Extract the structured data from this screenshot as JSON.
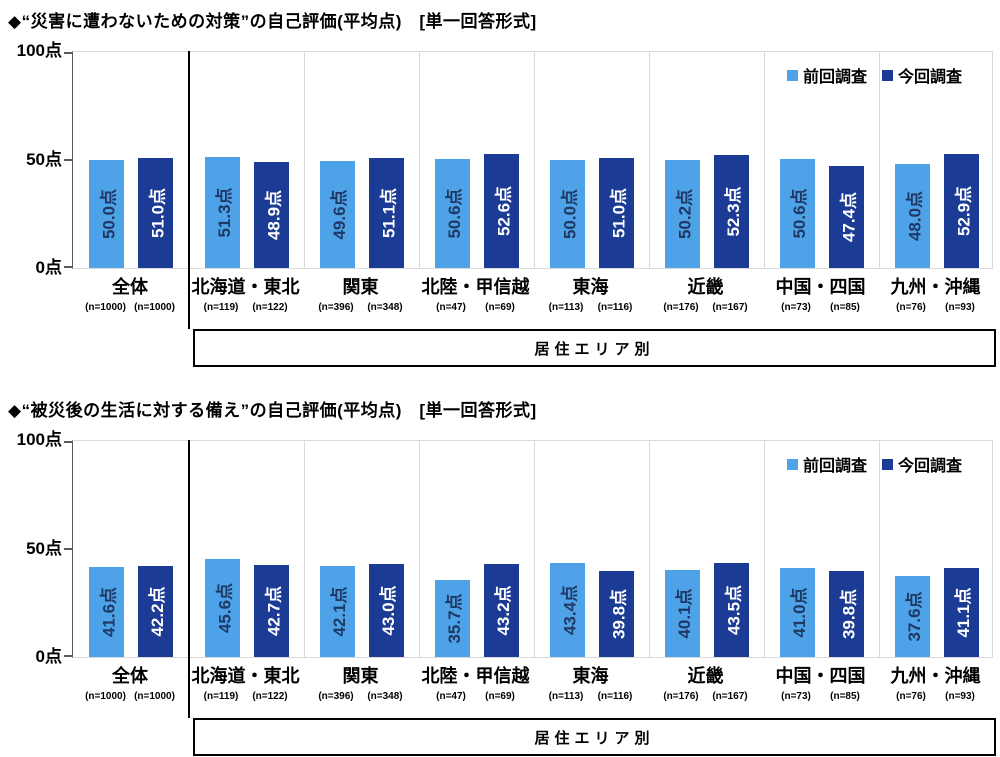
{
  "colors": {
    "previous_survey": "#4DA2E8",
    "current_survey": "#1B3B94",
    "label_on_previous": "#1F3864",
    "label_on_current": "#FFFFFF",
    "gridline": "#D9D9D9",
    "axis": "#595959",
    "separator": "#000000",
    "text": "#000000"
  },
  "chart_data": [
    {
      "type": "bar",
      "title": "◆“災害に遭わないための対策”の自己評価(平均点)　[単一回答形式]",
      "categories": [
        "全体",
        "北海道・東北",
        "関東",
        "北陸・甲信越",
        "東海",
        "近畿",
        "中国・四国",
        "九州・沖縄"
      ],
      "n_labels": [
        [
          "(n=1000)",
          "(n=1000)"
        ],
        [
          "(n=119)",
          "(n=122)"
        ],
        [
          "(n=396)",
          "(n=348)"
        ],
        [
          "(n=47)",
          "(n=69)"
        ],
        [
          "(n=113)",
          "(n=116)"
        ],
        [
          "(n=176)",
          "(n=167)"
        ],
        [
          "(n=73)",
          "(n=85)"
        ],
        [
          "(n=76)",
          "(n=93)"
        ]
      ],
      "series": [
        {
          "name": "前回調査",
          "values": [
            50.0,
            51.3,
            49.6,
            50.6,
            50.0,
            50.2,
            50.6,
            48.0
          ]
        },
        {
          "name": "今回調査",
          "values": [
            51.0,
            48.9,
            51.1,
            52.6,
            51.0,
            52.3,
            47.4,
            52.9
          ]
        }
      ],
      "value_suffix": "点",
      "y_tick_labels": [
        "100点",
        "50点",
        "0点"
      ],
      "ylim": [
        0,
        100
      ],
      "legend_position": "top-right",
      "grid": "category-separators-only",
      "group_box_label": "居住エリア別"
    },
    {
      "type": "bar",
      "title": "◆“被災後の生活に対する備え”の自己評価(平均点)　[単一回答形式]",
      "categories": [
        "全体",
        "北海道・東北",
        "関東",
        "北陸・甲信越",
        "東海",
        "近畿",
        "中国・四国",
        "九州・沖縄"
      ],
      "n_labels": [
        [
          "(n=1000)",
          "(n=1000)"
        ],
        [
          "(n=119)",
          "(n=122)"
        ],
        [
          "(n=396)",
          "(n=348)"
        ],
        [
          "(n=47)",
          "(n=69)"
        ],
        [
          "(n=113)",
          "(n=116)"
        ],
        [
          "(n=176)",
          "(n=167)"
        ],
        [
          "(n=73)",
          "(n=85)"
        ],
        [
          "(n=76)",
          "(n=93)"
        ]
      ],
      "series": [
        {
          "name": "前回調査",
          "values": [
            41.6,
            45.6,
            42.1,
            35.7,
            43.4,
            40.1,
            41.0,
            37.6
          ]
        },
        {
          "name": "今回調査",
          "values": [
            42.2,
            42.7,
            43.0,
            43.2,
            39.8,
            43.5,
            39.8,
            41.1
          ]
        }
      ],
      "value_suffix": "点",
      "y_tick_labels": [
        "100点",
        "50点",
        "0点"
      ],
      "ylim": [
        0,
        100
      ],
      "legend_position": "top-right",
      "grid": "category-separators-only",
      "group_box_label": "居住エリア別"
    }
  ]
}
